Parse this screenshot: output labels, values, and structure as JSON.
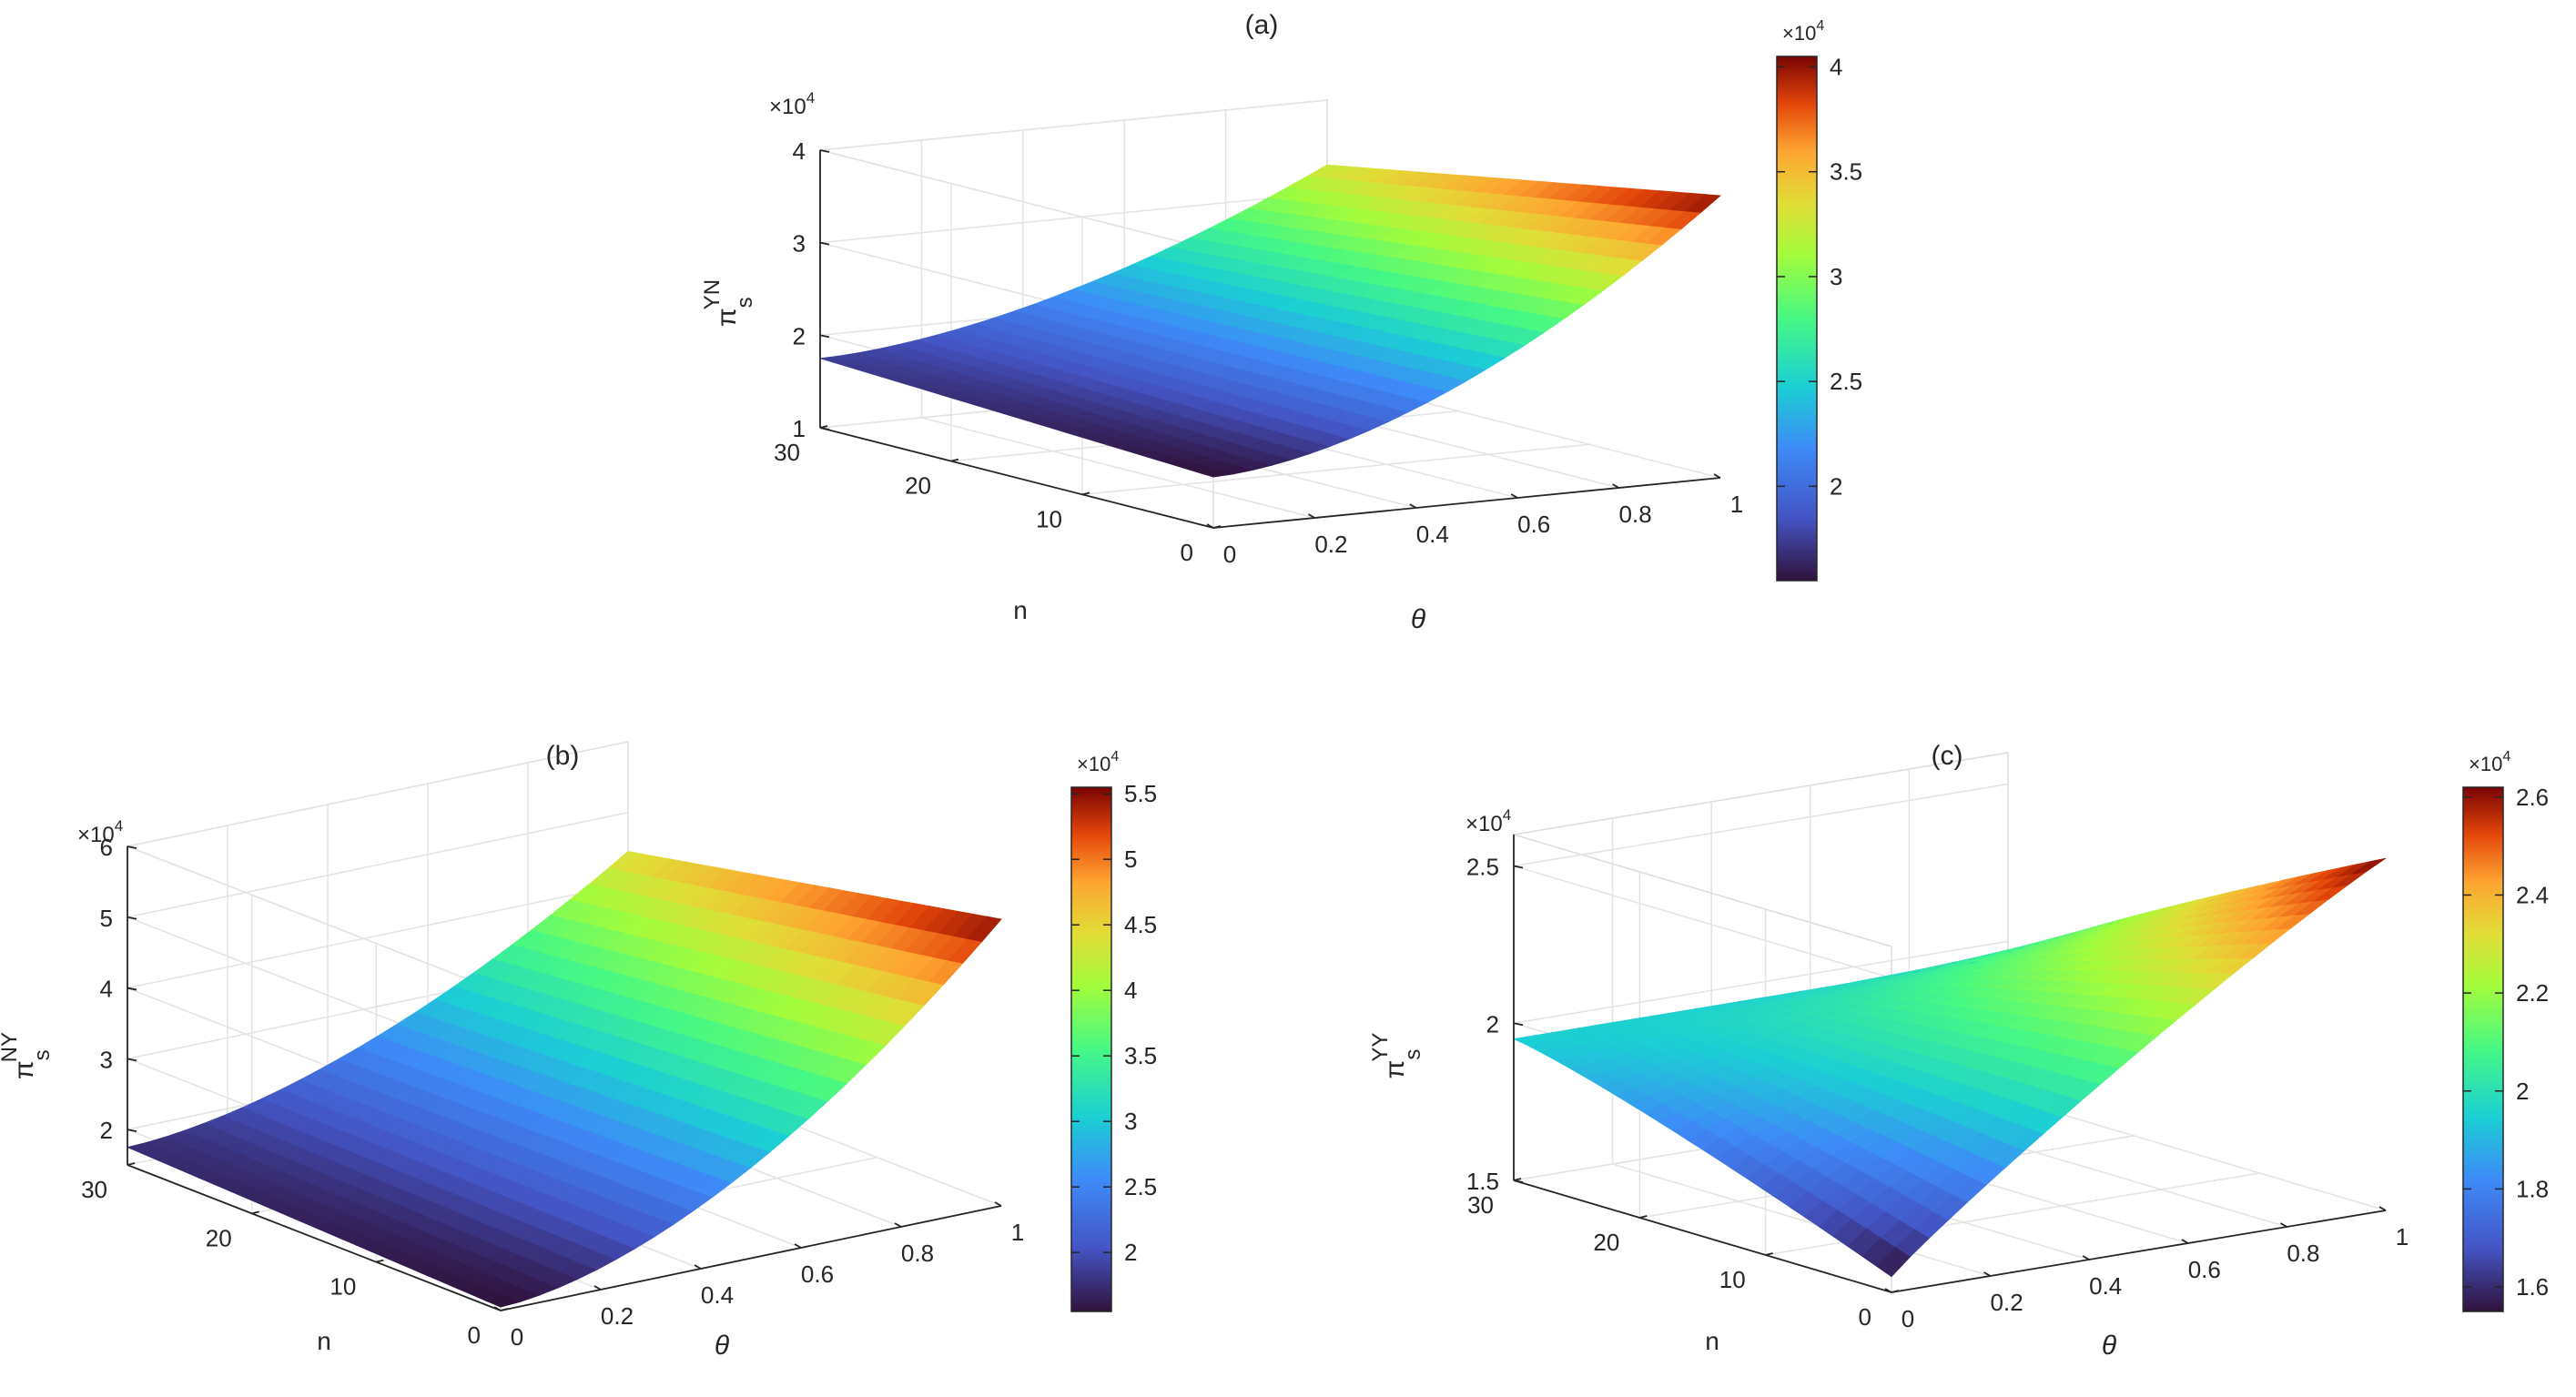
{
  "chart_data": [
    {
      "type": "surface3d",
      "panel_label": "(a)",
      "xlabel": "θ",
      "ylabel": "n",
      "zlabel_main": "π",
      "zlabel_sub": "s",
      "zlabel_sup": "YN",
      "exponent_label": "×10",
      "exponent_power": "4",
      "x_ticks": [
        "0",
        "0.2",
        "0.4",
        "0.6",
        "0.8",
        "1"
      ],
      "y_ticks": [
        "0",
        "10",
        "20",
        "30"
      ],
      "z_ticks": [
        "1",
        "2",
        "3",
        "4"
      ],
      "xlim": [
        0,
        1
      ],
      "ylim": [
        0,
        30
      ],
      "zlim": [
        1,
        4
      ],
      "colorbar_ticks": [
        "2",
        "2.5",
        "3",
        "3.5",
        "4"
      ],
      "colorbar_range": [
        1.55,
        4.05
      ],
      "surface": {
        "z_at_theta0_n0": 1.55,
        "z_at_theta1_n0": 4.05,
        "z_at_theta0_n30": 1.75,
        "z_at_theta1_n30": 3.3,
        "shape": "convex-in-theta"
      }
    },
    {
      "type": "surface3d",
      "panel_label": "(b)",
      "xlabel": "θ",
      "ylabel": "n",
      "zlabel_main": "π",
      "zlabel_sub": "s",
      "zlabel_sup": "NY",
      "exponent_label": "×10",
      "exponent_power": "4",
      "x_ticks": [
        "0",
        "0.2",
        "0.4",
        "0.6",
        "0.8",
        "1"
      ],
      "y_ticks": [
        "0",
        "10",
        "20",
        "30"
      ],
      "z_ticks": [
        "2",
        "3",
        "4",
        "5",
        "6"
      ],
      "xlim": [
        0,
        1
      ],
      "ylim": [
        0,
        30
      ],
      "zlim": [
        1.5,
        6
      ],
      "colorbar_ticks": [
        "2",
        "2.5",
        "3",
        "3.5",
        "4",
        "4.5",
        "5",
        "5.5"
      ],
      "colorbar_range": [
        1.55,
        5.55
      ],
      "surface": {
        "z_at_theta0_n0": 1.55,
        "z_at_theta1_n0": 5.55,
        "z_at_theta0_n30": 1.75,
        "z_at_theta1_n30": 4.45,
        "shape": "convex-in-theta"
      }
    },
    {
      "type": "surface3d",
      "panel_label": "(c)",
      "xlabel": "θ",
      "ylabel": "n",
      "zlabel_main": "π",
      "zlabel_sub": "s",
      "zlabel_sup": "YY",
      "exponent_label": "×10",
      "exponent_power": "4",
      "x_ticks": [
        "0",
        "0.2",
        "0.4",
        "0.6",
        "0.8",
        "1"
      ],
      "y_ticks": [
        "0",
        "10",
        "20",
        "30"
      ],
      "z_ticks": [
        "1.5",
        "2",
        "2.5"
      ],
      "xlim": [
        0,
        1
      ],
      "ylim": [
        0,
        30
      ],
      "zlim": [
        1.5,
        2.6
      ],
      "colorbar_ticks": [
        "1.6",
        "1.8",
        "2",
        "2.2",
        "2.4",
        "2.6"
      ],
      "colorbar_range": [
        1.55,
        2.62
      ],
      "surface": {
        "z_at_theta0_n0": 1.55,
        "z_at_theta1_n0": 2.62,
        "z_at_theta0_n30": 1.95,
        "z_at_theta1_n30": 1.95,
        "shape": "saddle-like"
      }
    }
  ]
}
